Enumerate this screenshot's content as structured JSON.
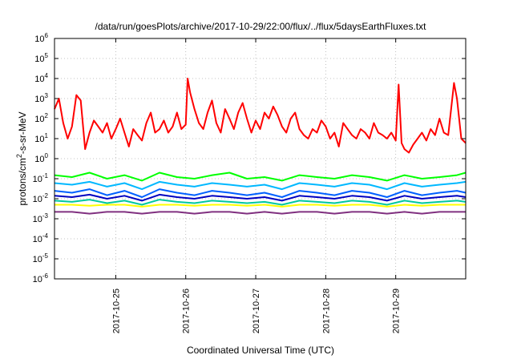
{
  "chart_data": {
    "type": "line",
    "title": "/data/run/goesPlots/archive/2017-10-29/22:00/flux/../flux/5daysEarthFluxes.txt",
    "xlabel": "Coordinated Universal Time (UTC)",
    "ylabel": {
      "base": "protons/cm",
      "sup": "2",
      "rest": "-s-sr-MeV"
    },
    "yscale": "log",
    "ylim": [
      1e-06,
      1000000.0
    ],
    "xlim": [
      "2017-10-24 03:00",
      "2017-10-30 00:00"
    ],
    "grid": true,
    "legend": "none",
    "x_ticks": [
      "2017-10-25",
      "2017-10-26",
      "2017-10-27",
      "2017-10-28",
      "2017-10-29"
    ],
    "y_ticks": [
      {
        "base": "10",
        "exp": "6"
      },
      {
        "base": "10",
        "exp": "5"
      },
      {
        "base": "10",
        "exp": "4"
      },
      {
        "base": "10",
        "exp": "3"
      },
      {
        "base": "10",
        "exp": "2"
      },
      {
        "base": "10",
        "exp": "1"
      },
      {
        "base": "10",
        "exp": "0"
      },
      {
        "base": "10",
        "exp": "-1"
      },
      {
        "base": "10",
        "exp": "-2"
      },
      {
        "base": "10",
        "exp": "-3"
      },
      {
        "base": "10",
        "exp": "-4"
      },
      {
        "base": "10",
        "exp": "-5"
      },
      {
        "base": "10",
        "exp": "-6"
      }
    ],
    "series": [
      {
        "color": "#ff0000",
        "x": [
          "2017-10-24 03:00",
          "2017-10-24 04:30",
          "2017-10-24 06:00",
          "2017-10-24 07:30",
          "2017-10-24 09:00",
          "2017-10-24 10:30",
          "2017-10-24 12:00",
          "2017-10-24 13:30",
          "2017-10-24 15:00",
          "2017-10-24 16:30",
          "2017-10-24 18:00",
          "2017-10-24 19:30",
          "2017-10-24 21:00",
          "2017-10-24 22:30",
          "2017-10-25 00:00",
          "2017-10-25 01:30",
          "2017-10-25 03:00",
          "2017-10-25 04:30",
          "2017-10-25 06:00",
          "2017-10-25 07:30",
          "2017-10-25 09:00",
          "2017-10-25 10:30",
          "2017-10-25 12:00",
          "2017-10-25 13:30",
          "2017-10-25 15:00",
          "2017-10-25 16:30",
          "2017-10-25 18:00",
          "2017-10-25 19:30",
          "2017-10-25 21:00",
          "2017-10-25 22:30",
          "2017-10-26 00:00",
          "2017-10-26 00:40",
          "2017-10-26 01:30",
          "2017-10-26 03:00",
          "2017-10-26 04:30",
          "2017-10-26 06:00",
          "2017-10-26 07:30",
          "2017-10-26 09:00",
          "2017-10-26 10:30",
          "2017-10-26 12:00",
          "2017-10-26 13:30",
          "2017-10-26 15:00",
          "2017-10-26 16:30",
          "2017-10-26 18:00",
          "2017-10-26 19:30",
          "2017-10-26 21:00",
          "2017-10-26 22:30",
          "2017-10-27 00:00",
          "2017-10-27 01:30",
          "2017-10-27 03:00",
          "2017-10-27 04:30",
          "2017-10-27 06:00",
          "2017-10-27 07:30",
          "2017-10-27 09:00",
          "2017-10-27 10:30",
          "2017-10-27 12:00",
          "2017-10-27 13:30",
          "2017-10-27 15:00",
          "2017-10-27 16:30",
          "2017-10-27 18:00",
          "2017-10-27 19:30",
          "2017-10-27 21:00",
          "2017-10-27 22:30",
          "2017-10-28 00:00",
          "2017-10-28 01:30",
          "2017-10-28 03:00",
          "2017-10-28 04:30",
          "2017-10-28 06:00",
          "2017-10-28 07:30",
          "2017-10-28 09:00",
          "2017-10-28 10:30",
          "2017-10-28 12:00",
          "2017-10-28 13:30",
          "2017-10-28 15:00",
          "2017-10-28 16:30",
          "2017-10-28 18:00",
          "2017-10-28 19:30",
          "2017-10-28 21:00",
          "2017-10-28 22:30",
          "2017-10-29 00:00",
          "2017-10-29 01:00",
          "2017-10-29 02:00",
          "2017-10-29 03:00",
          "2017-10-29 04:30",
          "2017-10-29 06:00",
          "2017-10-29 07:30",
          "2017-10-29 09:00",
          "2017-10-29 10:30",
          "2017-10-29 12:00",
          "2017-10-29 13:30",
          "2017-10-29 15:00",
          "2017-10-29 16:30",
          "2017-10-29 18:00",
          "2017-10-29 19:00",
          "2017-10-29 20:00",
          "2017-10-29 21:00",
          "2017-10-29 22:30",
          "2017-10-30 00:00"
        ],
        "y": [
          300,
          1000,
          60,
          10,
          40,
          1500,
          800,
          3,
          20,
          80,
          40,
          20,
          60,
          10,
          30,
          100,
          20,
          4,
          30,
          15,
          8,
          60,
          200,
          20,
          30,
          80,
          20,
          40,
          200,
          30,
          50,
          10000,
          2000,
          300,
          60,
          30,
          200,
          800,
          60,
          20,
          300,
          100,
          30,
          200,
          600,
          100,
          20,
          80,
          30,
          200,
          100,
          400,
          150,
          40,
          20,
          100,
          200,
          30,
          15,
          10,
          30,
          20,
          80,
          40,
          10,
          20,
          4,
          60,
          30,
          15,
          10,
          30,
          20,
          10,
          60,
          20,
          15,
          10,
          20,
          8,
          5000,
          6,
          3,
          2,
          5,
          10,
          20,
          8,
          30,
          15,
          100,
          20,
          15,
          300,
          6000,
          1000,
          10,
          6
        ]
      },
      {
        "color": "#00ff00",
        "x": [
          "2017-10-24 03:00",
          "2017-10-24 09:00",
          "2017-10-24 15:00",
          "2017-10-24 21:00",
          "2017-10-25 03:00",
          "2017-10-25 09:00",
          "2017-10-25 15:00",
          "2017-10-25 21:00",
          "2017-10-26 03:00",
          "2017-10-26 09:00",
          "2017-10-26 15:00",
          "2017-10-26 21:00",
          "2017-10-27 03:00",
          "2017-10-27 09:00",
          "2017-10-27 15:00",
          "2017-10-27 21:00",
          "2017-10-28 03:00",
          "2017-10-28 09:00",
          "2017-10-28 15:00",
          "2017-10-28 21:00",
          "2017-10-29 03:00",
          "2017-10-29 09:00",
          "2017-10-29 15:00",
          "2017-10-29 21:00",
          "2017-10-30 00:00"
        ],
        "y": [
          0.15,
          0.12,
          0.2,
          0.1,
          0.15,
          0.08,
          0.2,
          0.12,
          0.1,
          0.15,
          0.2,
          0.1,
          0.12,
          0.08,
          0.15,
          0.12,
          0.1,
          0.15,
          0.12,
          0.08,
          0.15,
          0.1,
          0.12,
          0.15,
          0.2
        ]
      },
      {
        "color": "#00b8ff",
        "x": [
          "2017-10-24 03:00",
          "2017-10-24 09:00",
          "2017-10-24 15:00",
          "2017-10-24 21:00",
          "2017-10-25 03:00",
          "2017-10-25 09:00",
          "2017-10-25 15:00",
          "2017-10-25 21:00",
          "2017-10-26 03:00",
          "2017-10-26 09:00",
          "2017-10-26 15:00",
          "2017-10-26 21:00",
          "2017-10-27 03:00",
          "2017-10-27 09:00",
          "2017-10-27 15:00",
          "2017-10-27 21:00",
          "2017-10-28 03:00",
          "2017-10-28 09:00",
          "2017-10-28 15:00",
          "2017-10-28 21:00",
          "2017-10-29 03:00",
          "2017-10-29 09:00",
          "2017-10-29 15:00",
          "2017-10-29 21:00",
          "2017-10-30 00:00"
        ],
        "y": [
          0.06,
          0.05,
          0.07,
          0.04,
          0.06,
          0.03,
          0.07,
          0.05,
          0.04,
          0.06,
          0.05,
          0.04,
          0.05,
          0.03,
          0.06,
          0.05,
          0.04,
          0.06,
          0.05,
          0.03,
          0.06,
          0.04,
          0.05,
          0.06,
          0.07
        ]
      },
      {
        "color": "#0060ff",
        "x": [
          "2017-10-24 03:00",
          "2017-10-24 09:00",
          "2017-10-24 15:00",
          "2017-10-24 21:00",
          "2017-10-25 03:00",
          "2017-10-25 09:00",
          "2017-10-25 15:00",
          "2017-10-25 21:00",
          "2017-10-26 03:00",
          "2017-10-26 09:00",
          "2017-10-26 15:00",
          "2017-10-26 21:00",
          "2017-10-27 03:00",
          "2017-10-27 09:00",
          "2017-10-27 15:00",
          "2017-10-27 21:00",
          "2017-10-28 03:00",
          "2017-10-28 09:00",
          "2017-10-28 15:00",
          "2017-10-28 21:00",
          "2017-10-29 03:00",
          "2017-10-29 09:00",
          "2017-10-29 15:00",
          "2017-10-29 21:00",
          "2017-10-30 00:00"
        ],
        "y": [
          0.025,
          0.02,
          0.03,
          0.015,
          0.025,
          0.012,
          0.03,
          0.02,
          0.015,
          0.025,
          0.02,
          0.015,
          0.02,
          0.012,
          0.025,
          0.02,
          0.015,
          0.025,
          0.02,
          0.012,
          0.025,
          0.015,
          0.02,
          0.025,
          0.02
        ]
      },
      {
        "color": "#0000c0",
        "x": [
          "2017-10-24 03:00",
          "2017-10-24 09:00",
          "2017-10-24 15:00",
          "2017-10-24 21:00",
          "2017-10-25 03:00",
          "2017-10-25 09:00",
          "2017-10-25 15:00",
          "2017-10-25 21:00",
          "2017-10-26 03:00",
          "2017-10-26 09:00",
          "2017-10-26 15:00",
          "2017-10-26 21:00",
          "2017-10-27 03:00",
          "2017-10-27 09:00",
          "2017-10-27 15:00",
          "2017-10-27 21:00",
          "2017-10-28 03:00",
          "2017-10-28 09:00",
          "2017-10-28 15:00",
          "2017-10-28 21:00",
          "2017-10-29 03:00",
          "2017-10-29 09:00",
          "2017-10-29 15:00",
          "2017-10-29 21:00",
          "2017-10-30 00:00"
        ],
        "y": [
          0.014,
          0.012,
          0.016,
          0.01,
          0.014,
          0.008,
          0.016,
          0.012,
          0.01,
          0.014,
          0.012,
          0.01,
          0.012,
          0.008,
          0.014,
          0.012,
          0.01,
          0.014,
          0.012,
          0.008,
          0.014,
          0.01,
          0.012,
          0.014,
          0.012
        ]
      },
      {
        "color": "#00c8a0",
        "x": [
          "2017-10-24 03:00",
          "2017-10-24 09:00",
          "2017-10-24 15:00",
          "2017-10-24 21:00",
          "2017-10-25 03:00",
          "2017-10-25 09:00",
          "2017-10-25 15:00",
          "2017-10-25 21:00",
          "2017-10-26 03:00",
          "2017-10-26 09:00",
          "2017-10-26 15:00",
          "2017-10-26 21:00",
          "2017-10-27 03:00",
          "2017-10-27 09:00",
          "2017-10-27 15:00",
          "2017-10-27 21:00",
          "2017-10-28 03:00",
          "2017-10-28 09:00",
          "2017-10-28 15:00",
          "2017-10-28 21:00",
          "2017-10-29 03:00",
          "2017-10-29 09:00",
          "2017-10-29 15:00",
          "2017-10-29 21:00",
          "2017-10-30 00:00"
        ],
        "y": [
          0.008,
          0.007,
          0.009,
          0.006,
          0.008,
          0.005,
          0.009,
          0.007,
          0.006,
          0.008,
          0.007,
          0.006,
          0.007,
          0.005,
          0.008,
          0.007,
          0.006,
          0.008,
          0.007,
          0.005,
          0.008,
          0.006,
          0.007,
          0.008,
          0.007
        ]
      },
      {
        "color": "#ffff00",
        "x": [
          "2017-10-24 03:00",
          "2017-10-24 09:00",
          "2017-10-24 15:00",
          "2017-10-24 21:00",
          "2017-10-25 03:00",
          "2017-10-25 09:00",
          "2017-10-25 15:00",
          "2017-10-25 21:00",
          "2017-10-26 03:00",
          "2017-10-26 09:00",
          "2017-10-26 15:00",
          "2017-10-26 21:00",
          "2017-10-27 03:00",
          "2017-10-27 09:00",
          "2017-10-27 15:00",
          "2017-10-27 21:00",
          "2017-10-28 03:00",
          "2017-10-28 09:00",
          "2017-10-28 15:00",
          "2017-10-28 21:00",
          "2017-10-29 03:00",
          "2017-10-29 09:00",
          "2017-10-29 15:00",
          "2017-10-29 21:00",
          "2017-10-30 00:00"
        ],
        "y": [
          0.005,
          0.005,
          0.0045,
          0.005,
          0.005,
          0.004,
          0.005,
          0.005,
          0.0045,
          0.005,
          0.005,
          0.0045,
          0.005,
          0.004,
          0.005,
          0.005,
          0.0045,
          0.005,
          0.005,
          0.004,
          0.005,
          0.0045,
          0.005,
          0.005,
          0.005
        ]
      },
      {
        "color": "#803080",
        "x": [
          "2017-10-24 03:00",
          "2017-10-24 09:00",
          "2017-10-24 15:00",
          "2017-10-24 21:00",
          "2017-10-25 03:00",
          "2017-10-25 09:00",
          "2017-10-25 15:00",
          "2017-10-25 21:00",
          "2017-10-26 03:00",
          "2017-10-26 09:00",
          "2017-10-26 15:00",
          "2017-10-26 21:00",
          "2017-10-27 03:00",
          "2017-10-27 09:00",
          "2017-10-27 15:00",
          "2017-10-27 21:00",
          "2017-10-28 03:00",
          "2017-10-28 09:00",
          "2017-10-28 15:00",
          "2017-10-28 21:00",
          "2017-10-29 03:00",
          "2017-10-29 09:00",
          "2017-10-29 15:00",
          "2017-10-29 21:00",
          "2017-10-30 00:00"
        ],
        "y": [
          0.0022,
          0.0022,
          0.0018,
          0.0022,
          0.0022,
          0.0018,
          0.0022,
          0.0022,
          0.0018,
          0.0022,
          0.0022,
          0.0018,
          0.0022,
          0.0018,
          0.0022,
          0.0022,
          0.0018,
          0.0022,
          0.0022,
          0.0018,
          0.0022,
          0.0018,
          0.0022,
          0.0022,
          0.0022
        ]
      }
    ]
  }
}
